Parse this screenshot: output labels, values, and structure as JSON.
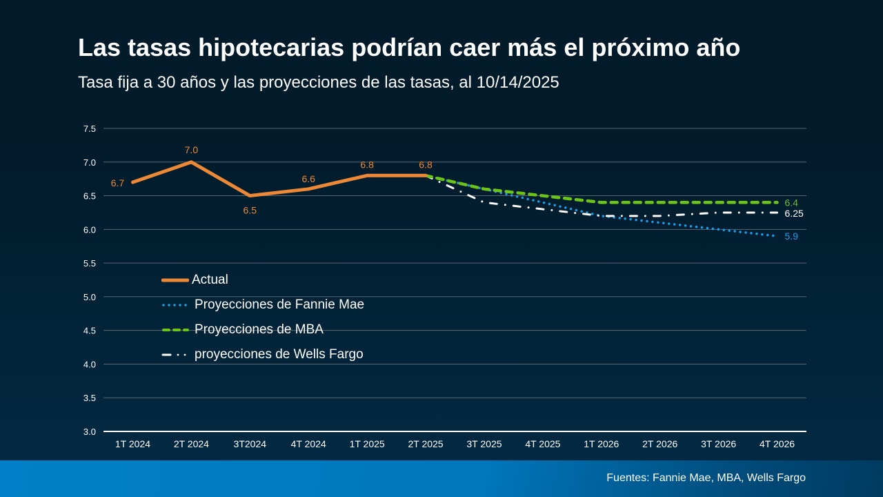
{
  "header": {
    "title": "Las tasas hipotecarias podrían caer más el próximo año",
    "subtitle": "Tasa fija a 30 años y las proyecciones de las tasas, al 10/14/2025"
  },
  "footer": {
    "source": "Fuentes: Fannie Mae, MBA, Wells Fargo"
  },
  "chart_data": {
    "type": "line",
    "title": "Las tasas hipotecarias podrían caer más el próximo año",
    "subtitle": "Tasa fija a 30 años y las proyecciones de las tasas, al 10/14/2025",
    "xlabel": "",
    "ylabel": "",
    "ylim": [
      3.0,
      7.5
    ],
    "yticks": [
      "3.0",
      "3.5",
      "4.0",
      "4.5",
      "5.0",
      "5.5",
      "6.0",
      "6.5",
      "7.0",
      "7.5"
    ],
    "grid": true,
    "legend_position": "center-left",
    "categories": [
      "1T 2024",
      "2T 2024",
      "3T2024",
      "4T 2024",
      "1T 2025",
      "2T 2025",
      "3T 2025",
      "4T 2025",
      "1T 2026",
      "2T 2026",
      "3T 2026",
      "4T 2026"
    ],
    "series": [
      {
        "name": "Actual",
        "color": "#ed8936",
        "style": "solid",
        "values": [
          6.7,
          7.0,
          6.5,
          6.6,
          6.8,
          6.8,
          null,
          null,
          null,
          null,
          null,
          null
        ],
        "labels": [
          "6.7",
          "7.0",
          "6.5",
          "6.6",
          "6.8",
          "6.8"
        ]
      },
      {
        "name": "Proyecciones de Fannie Mae",
        "color": "#1a9ee8",
        "style": "dotted",
        "values": [
          null,
          null,
          null,
          null,
          null,
          6.8,
          6.6,
          6.4,
          6.2,
          6.1,
          6.0,
          5.9
        ],
        "end_label": "5.9"
      },
      {
        "name": "Proyecciones de MBA",
        "color": "#6cc419",
        "style": "dashed",
        "values": [
          null,
          null,
          null,
          null,
          null,
          6.8,
          6.6,
          6.5,
          6.4,
          6.4,
          6.4,
          6.4
        ],
        "end_label": "6.4",
        "end_label_color": "#6dbb3c"
      },
      {
        "name": "proyecciones de Wells Fargo",
        "color": "#ffffff",
        "style": "dash-dot",
        "values": [
          null,
          null,
          null,
          null,
          null,
          6.8,
          6.4,
          6.3,
          6.2,
          6.2,
          6.25,
          6.25
        ],
        "end_label": "6.25"
      }
    ]
  }
}
